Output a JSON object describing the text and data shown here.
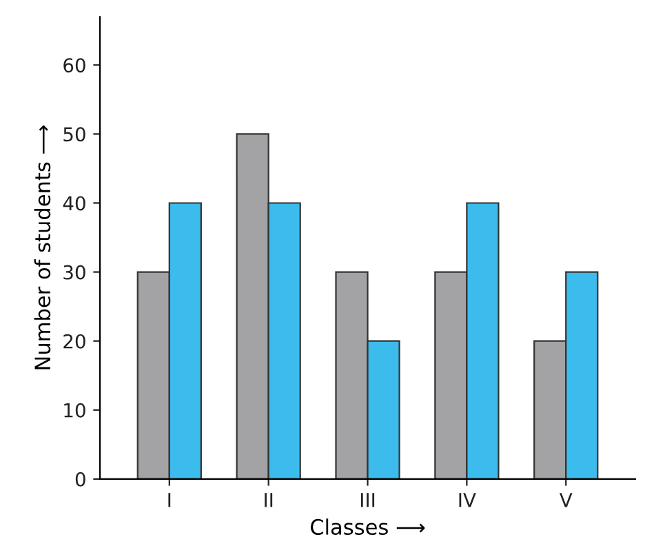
{
  "chart_data": {
    "type": "bar",
    "xlabel": "Classes ⟶",
    "ylabel": "Number of students ⟶",
    "categories": [
      "I",
      "II",
      "III",
      "IV",
      "V"
    ],
    "series": [
      {
        "color": "#a3a3a6",
        "values": [
          30,
          50,
          30,
          30,
          20
        ]
      },
      {
        "color": "#3cbcec",
        "values": [
          40,
          40,
          20,
          40,
          30
        ]
      }
    ],
    "ylim": [
      0,
      67
    ],
    "yticks": [
      0,
      10,
      20,
      30,
      40,
      50,
      60
    ],
    "grid": false,
    "legend": false
  }
}
